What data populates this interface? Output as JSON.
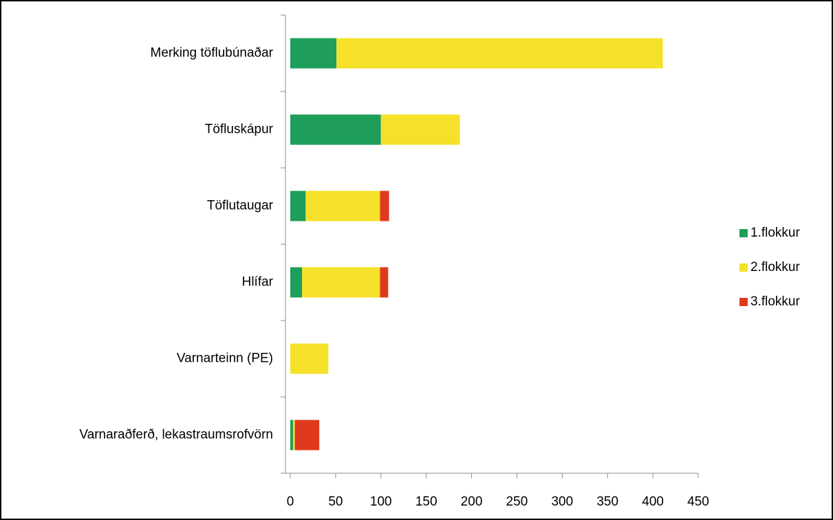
{
  "chart_data": {
    "type": "stacked_bar_horizontal",
    "categories": [
      "Merking töflubúnaðar",
      "Töfluskápur",
      "Töflutaugar",
      "Hlífar",
      "Varnarteinn (PE)",
      "Varnaraðferð, lekastraumsrofvörn"
    ],
    "series": [
      {
        "name": "1.flokkur",
        "color": "#1e9e5a",
        "values": [
          51,
          100,
          17,
          13,
          0,
          3
        ]
      },
      {
        "name": "2.flokkur",
        "color": "#f5e12a",
        "values": [
          360,
          87,
          82,
          86,
          42,
          2
        ]
      },
      {
        "name": "3.flokkur",
        "color": "#e03a1e",
        "values": [
          0,
          0,
          10,
          9,
          0,
          27
        ]
      }
    ],
    "xlim": [
      0,
      450
    ],
    "xticks": [
      0,
      50,
      100,
      150,
      200,
      250,
      300,
      350,
      400,
      450
    ],
    "grid": false,
    "legend": "right"
  }
}
